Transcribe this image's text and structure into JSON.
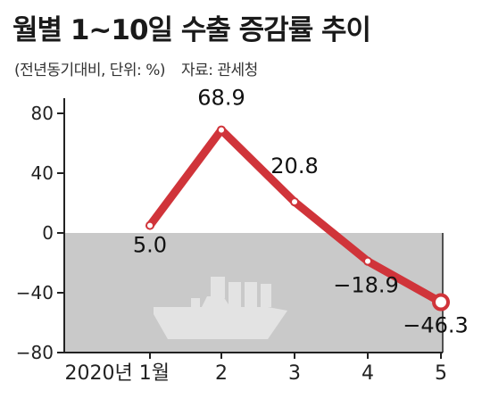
{
  "title": "월별 1~10일 수출 증감률 추이",
  "subtitle": "(전년동기대비, 단위: %)",
  "source": "자료: 관세청",
  "colors": {
    "line": "#d0343a",
    "negative_area": "#c9c9c9",
    "positive_area": "#ffffff"
  },
  "icons": {
    "background_illustration": "cargo-ship-icon"
  },
  "chart_data": {
    "type": "line",
    "title": "월별 1~10일 수출 증감률 추이",
    "x": [
      "2020년 1월",
      "2",
      "3",
      "4",
      "5"
    ],
    "series": [
      {
        "values": [
          5.0,
          68.9,
          20.8,
          -18.9,
          -46.3
        ]
      }
    ],
    "data_labels": [
      "5.0",
      "68.9",
      "20.8",
      "−18.9",
      "−46.3"
    ],
    "yticks": [
      "80",
      "40",
      "0",
      "−40",
      "−80"
    ],
    "ytick_values": [
      80,
      40,
      0,
      -40,
      -80
    ],
    "ylim": [
      -80,
      80
    ],
    "xlabel": "",
    "ylabel": "",
    "grid": false,
    "legend": "none",
    "negative_region_shaded": true
  }
}
